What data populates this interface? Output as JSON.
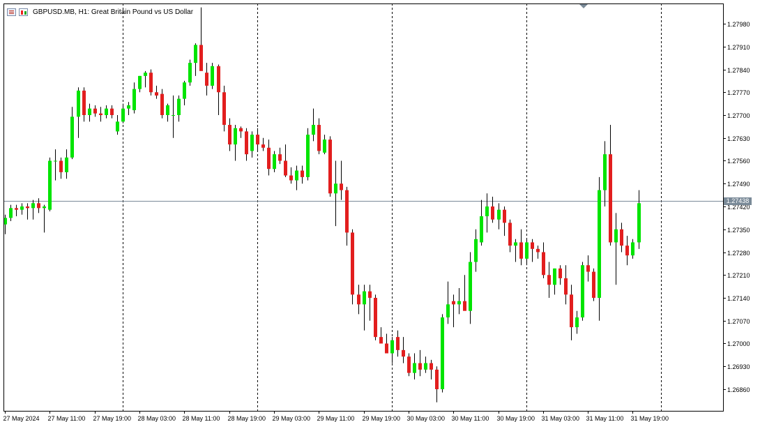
{
  "header": {
    "title": "GBPUSD.MB, H1:  Great Britain Pound vs US Dollar",
    "list_icon": "list-icon",
    "chart_icon": "candles-icon"
  },
  "colors": {
    "bull": "#00e400",
    "bear": "#e21e1e",
    "wick": "#000000",
    "grid": "#000000",
    "price_line": "#7a8a98",
    "price_tag_bg": "#7a8a98"
  },
  "current_price": {
    "label": "1.27438",
    "value": 1.27438
  },
  "chart_data": {
    "type": "candlestick",
    "symbol": "GBPUSD.MB",
    "timeframe": "H1",
    "ylim": [
      1.268,
      1.2803
    ],
    "yticks": [
      {
        "value": 1.2798,
        "label": "1.27980"
      },
      {
        "value": 1.2791,
        "label": "1.27910"
      },
      {
        "value": 1.2784,
        "label": "1.27840"
      },
      {
        "value": 1.2777,
        "label": "1.27770"
      },
      {
        "value": 1.277,
        "label": "1.27700"
      },
      {
        "value": 1.2763,
        "label": "1.27630"
      },
      {
        "value": 1.2756,
        "label": "1.27560"
      },
      {
        "value": 1.2749,
        "label": "1.27490"
      },
      {
        "value": 1.2742,
        "label": "1.27420"
      },
      {
        "value": 1.2735,
        "label": "1.27350"
      },
      {
        "value": 1.2728,
        "label": "1.27280"
      },
      {
        "value": 1.2721,
        "label": "1.27210"
      },
      {
        "value": 1.2714,
        "label": "1.27140"
      },
      {
        "value": 1.2707,
        "label": "1.27070"
      },
      {
        "value": 1.27,
        "label": "1.27000"
      },
      {
        "value": 1.2693,
        "label": "1.26930"
      },
      {
        "value": 1.2686,
        "label": "1.26860"
      }
    ],
    "xticks": [
      {
        "bar": 0,
        "label": "27 May 2024"
      },
      {
        "bar": 8,
        "label": "27 May 11:00"
      },
      {
        "bar": 16,
        "label": "27 May 19:00"
      },
      {
        "bar": 24,
        "label": "28 May 03:00"
      },
      {
        "bar": 32,
        "label": "28 May 11:00"
      },
      {
        "bar": 40,
        "label": "28 May 19:00"
      },
      {
        "bar": 48,
        "label": "29 May 03:00"
      },
      {
        "bar": 56,
        "label": "29 May 11:00"
      },
      {
        "bar": 64,
        "label": "29 May 19:00"
      },
      {
        "bar": 72,
        "label": "30 May 03:00"
      },
      {
        "bar": 80,
        "label": "30 May 11:00"
      },
      {
        "bar": 88,
        "label": "30 May 19:00"
      },
      {
        "bar": 96,
        "label": "31 May 03:00"
      },
      {
        "bar": 104,
        "label": "31 May 11:00"
      },
      {
        "bar": 112,
        "label": "31 May 19:00"
      }
    ],
    "day_separators": [
      21,
      45,
      69,
      93,
      117
    ],
    "candles": [
      [
        1.27365,
        1.27395,
        1.27335,
        1.27385
      ],
      [
        1.27385,
        1.27425,
        1.27375,
        1.27415
      ],
      [
        1.27415,
        1.27425,
        1.2739,
        1.2741
      ],
      [
        1.2741,
        1.2743,
        1.27395,
        1.2742
      ],
      [
        1.2742,
        1.2743,
        1.2738,
        1.27415
      ],
      [
        1.27415,
        1.2744,
        1.2738,
        1.2743
      ],
      [
        1.2743,
        1.27445,
        1.274,
        1.27415
      ],
      [
        1.27415,
        1.27425,
        1.2734,
        1.2742
      ],
      [
        1.2741,
        1.2757,
        1.27405,
        1.2756
      ],
      [
        1.2756,
        1.27595,
        1.275,
        1.2756
      ],
      [
        1.2756,
        1.2757,
        1.27505,
        1.27525
      ],
      [
        1.27525,
        1.27595,
        1.27505,
        1.2757
      ],
      [
        1.2757,
        1.27725,
        1.27565,
        1.27695
      ],
      [
        1.27695,
        1.27785,
        1.2763,
        1.27775
      ],
      [
        1.27775,
        1.27785,
        1.2768,
        1.277
      ],
      [
        1.277,
        1.27735,
        1.2768,
        1.2772
      ],
      [
        1.2772,
        1.2773,
        1.27695,
        1.27705
      ],
      [
        1.27705,
        1.27725,
        1.2768,
        1.277
      ],
      [
        1.277,
        1.2773,
        1.2769,
        1.2772
      ],
      [
        1.2772,
        1.2773,
        1.2769,
        1.277
      ],
      [
        1.2765,
        1.277,
        1.2764,
        1.2768
      ],
      [
        1.2768,
        1.27735,
        1.27675,
        1.2772
      ],
      [
        1.2772,
        1.2774,
        1.277,
        1.2773
      ],
      [
        1.27715,
        1.278,
        1.27705,
        1.2778
      ],
      [
        1.2778,
        1.2782,
        1.2777,
        1.2782
      ],
      [
        1.2782,
        1.27835,
        1.27785,
        1.2783
      ],
      [
        1.2783,
        1.2784,
        1.2776,
        1.2777
      ],
      [
        1.2777,
        1.2779,
        1.2775,
        1.2776
      ],
      [
        1.27765,
        1.2778,
        1.2769,
        1.277
      ],
      [
        1.277,
        1.27735,
        1.2768,
        1.2773
      ],
      [
        1.277,
        1.2776,
        1.2763,
        1.277
      ],
      [
        1.277,
        1.2776,
        1.2768,
        1.2775
      ],
      [
        1.2775,
        1.27805,
        1.2773,
        1.278
      ],
      [
        1.278,
        1.2787,
        1.2779,
        1.2786
      ],
      [
        1.2786,
        1.2792,
        1.2782,
        1.27915
      ],
      [
        1.27915,
        1.2803,
        1.2784,
        1.27835
      ],
      [
        1.2783,
        1.2786,
        1.2776,
        1.2779
      ],
      [
        1.2779,
        1.2786,
        1.2778,
        1.2785
      ],
      [
        1.2785,
        1.27855,
        1.277,
        1.2777
      ],
      [
        1.2777,
        1.2779,
        1.2765,
        1.2767
      ],
      [
        1.2767,
        1.2769,
        1.2759,
        1.2761
      ],
      [
        1.2761,
        1.2767,
        1.2756,
        1.2766
      ],
      [
        1.2766,
        1.27665,
        1.2763,
        1.2765
      ],
      [
        1.2765,
        1.2766,
        1.2756,
        1.2758
      ],
      [
        1.2759,
        1.2765,
        1.2757,
        1.2764
      ],
      [
        1.2764,
        1.2766,
        1.2759,
        1.2761
      ],
      [
        1.2761,
        1.2763,
        1.2759,
        1.276
      ],
      [
        1.276,
        1.27625,
        1.27515,
        1.27535
      ],
      [
        1.27535,
        1.2759,
        1.27525,
        1.2758
      ],
      [
        1.2758,
        1.276,
        1.2755,
        1.2756
      ],
      [
        1.2756,
        1.2761,
        1.2751,
        1.27515
      ],
      [
        1.27515,
        1.2754,
        1.2749,
        1.275
      ],
      [
        1.275,
        1.27545,
        1.2747,
        1.2753
      ],
      [
        1.2753,
        1.27545,
        1.2749,
        1.2751
      ],
      [
        1.2751,
        1.2766,
        1.275,
        1.2764
      ],
      [
        1.2764,
        1.2772,
        1.2762,
        1.2767
      ],
      [
        1.2767,
        1.2769,
        1.2758,
        1.2759
      ],
      [
        1.27585,
        1.2764,
        1.2758,
        1.27625
      ],
      [
        1.27625,
        1.27635,
        1.2745,
        1.2746
      ],
      [
        1.2746,
        1.2756,
        1.2736,
        1.2749
      ],
      [
        1.2749,
        1.2756,
        1.2744,
        1.2747
      ],
      [
        1.2747,
        1.2748,
        1.273,
        1.2734
      ],
      [
        1.2734,
        1.2735,
        1.2712,
        1.2715
      ],
      [
        1.2715,
        1.2718,
        1.2709,
        1.2712
      ],
      [
        1.2712,
        1.2718,
        1.2704,
        1.2716
      ],
      [
        1.2716,
        1.2718,
        1.2707,
        1.2714
      ],
      [
        1.2714,
        1.2715,
        1.2701,
        1.2702
      ],
      [
        1.2702,
        1.2705,
        1.27,
        1.27
      ],
      [
        1.27,
        1.2703,
        1.2698,
        1.2697
      ],
      [
        1.2697,
        1.2702,
        1.2694,
        1.2701
      ],
      [
        1.2702,
        1.2704,
        1.2696,
        1.2698
      ],
      [
        1.2698,
        1.2702,
        1.2694,
        1.2696
      ],
      [
        1.2696,
        1.2697,
        1.269,
        1.2691
      ],
      [
        1.2691,
        1.2697,
        1.2689,
        1.2694
      ],
      [
        1.2694,
        1.2698,
        1.269,
        1.2692
      ],
      [
        1.2692,
        1.2696,
        1.2691,
        1.2694
      ],
      [
        1.2694,
        1.2695,
        1.2689,
        1.2692
      ],
      [
        1.2692,
        1.2693,
        1.2682,
        1.2686
      ],
      [
        1.2686,
        1.2709,
        1.2685,
        1.2708
      ],
      [
        1.2708,
        1.2719,
        1.2706,
        1.2712
      ],
      [
        1.2713,
        1.2715,
        1.2705,
        1.2712
      ],
      [
        1.2712,
        1.2717,
        1.2709,
        1.2713
      ],
      [
        1.2713,
        1.2721,
        1.2711,
        1.271
      ],
      [
        1.271,
        1.2728,
        1.2706,
        1.2725
      ],
      [
        1.2725,
        1.2735,
        1.2722,
        1.2732
      ],
      [
        1.2731,
        1.2744,
        1.273,
        1.2739
      ],
      [
        1.2739,
        1.2746,
        1.2734,
        1.2742
      ],
      [
        1.2742,
        1.2745,
        1.2737,
        1.2738
      ],
      [
        1.2738,
        1.2743,
        1.2735,
        1.2741
      ],
      [
        1.2741,
        1.2742,
        1.2733,
        1.2737
      ],
      [
        1.2737,
        1.2738,
        1.2728,
        1.273
      ],
      [
        1.273,
        1.2732,
        1.2725,
        1.2731
      ],
      [
        1.2731,
        1.2735,
        1.2724,
        1.2726
      ],
      [
        1.2726,
        1.2732,
        1.2724,
        1.2731
      ],
      [
        1.2731,
        1.2732,
        1.2725,
        1.2729
      ],
      [
        1.2729,
        1.273,
        1.2726,
        1.2728
      ],
      [
        1.2728,
        1.2731,
        1.272,
        1.2721
      ],
      [
        1.2721,
        1.2725,
        1.2714,
        1.2718
      ],
      [
        1.2718,
        1.2723,
        1.2715,
        1.2723
      ],
      [
        1.2723,
        1.2724,
        1.2718,
        1.272
      ],
      [
        1.272,
        1.2724,
        1.2712,
        1.2715
      ],
      [
        1.2715,
        1.2718,
        1.2701,
        1.2705
      ],
      [
        1.2705,
        1.271,
        1.2703,
        1.2708
      ],
      [
        1.2708,
        1.2725,
        1.2707,
        1.2724
      ],
      [
        1.2724,
        1.2727,
        1.2719,
        1.2722
      ],
      [
        1.2722,
        1.2723,
        1.2713,
        1.2714
      ],
      [
        1.2714,
        1.2751,
        1.2707,
        1.2747
      ],
      [
        1.2747,
        1.2762,
        1.2742,
        1.2758
      ],
      [
        1.2758,
        1.2767,
        1.273,
        1.2731
      ],
      [
        1.2731,
        1.274,
        1.2718,
        1.2735
      ],
      [
        1.2735,
        1.2737,
        1.2728,
        1.273
      ],
      [
        1.273,
        1.2733,
        1.2724,
        1.2727
      ],
      [
        1.2727,
        1.2732,
        1.2726,
        1.2731
      ],
      [
        1.2731,
        1.2747,
        1.2729,
        1.2743
      ]
    ]
  }
}
